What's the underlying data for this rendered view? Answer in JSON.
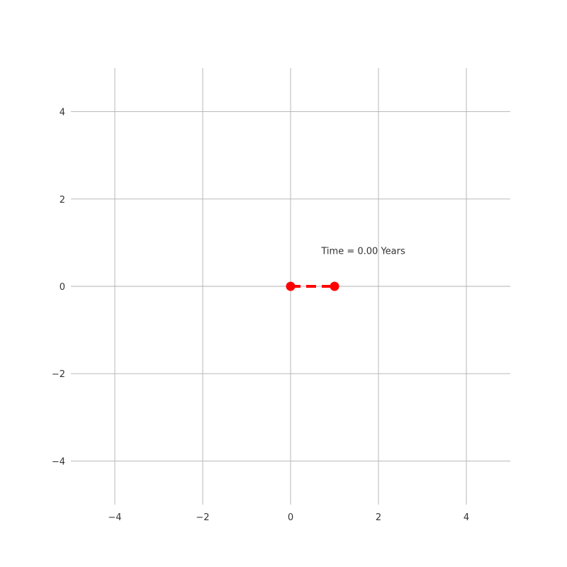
{
  "chart_data": {
    "type": "line",
    "title": "",
    "xlabel": "",
    "ylabel": "",
    "xlim": [
      -5,
      5
    ],
    "ylim": [
      -5,
      5
    ],
    "xticks": [
      -4,
      -2,
      0,
      2,
      4
    ],
    "yticks": [
      -4,
      -2,
      0,
      2,
      4
    ],
    "xtick_labels": [
      "−4",
      "−2",
      "0",
      "2",
      "4"
    ],
    "ytick_labels": [
      "−4",
      "−2",
      "0",
      "2",
      "4"
    ],
    "grid": true,
    "series": [
      {
        "points": [
          {
            "x": 0,
            "y": 0
          },
          {
            "x": 1,
            "y": 0
          }
        ],
        "line_style": "dashed",
        "marker": "circle",
        "color": "#ff0000"
      }
    ],
    "annotations": [
      {
        "text": "Time = 0.00 Years",
        "x": 0.7,
        "y": 0.8
      }
    ]
  }
}
